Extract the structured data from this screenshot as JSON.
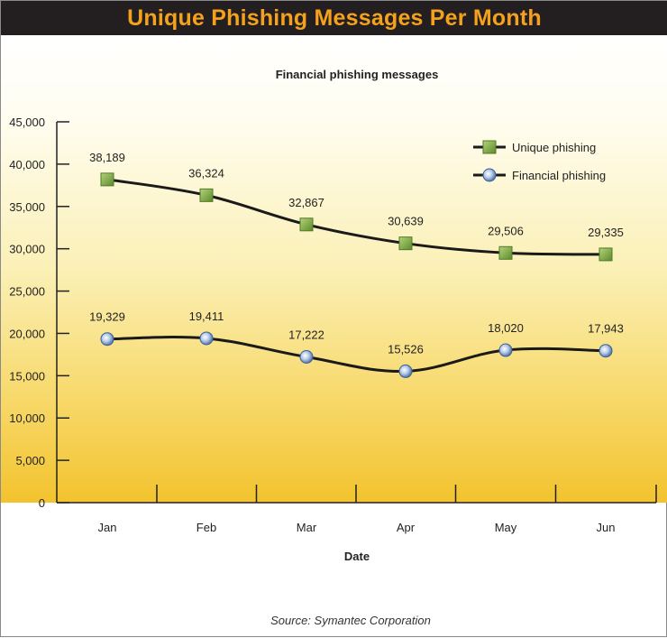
{
  "header": {
    "title": "Unique Phishing Messages Per Month"
  },
  "chart_data": {
    "type": "line",
    "title": "Financial phishing messages",
    "xlabel": "Date",
    "ylabel": "",
    "categories": [
      "Jan",
      "Feb",
      "Mar",
      "Apr",
      "May",
      "Jun"
    ],
    "ylim": [
      0,
      45000
    ],
    "yticks": [
      0,
      5000,
      10000,
      15000,
      20000,
      25000,
      30000,
      35000,
      40000,
      45000
    ],
    "ytick_labels": [
      "0",
      "5,000",
      "10,000",
      "15,000",
      "20,000",
      "25,000",
      "30,000",
      "35,000",
      "40,000",
      "45,000"
    ],
    "grid": false,
    "legend_position": "top-right",
    "series": [
      {
        "name": "Unique phishing",
        "marker": "square",
        "color": "#6f9a3a",
        "values": [
          38189,
          36324,
          32867,
          30639,
          29506,
          29335
        ],
        "labels": [
          "38,189",
          "36,324",
          "32,867",
          "30,639",
          "29,506",
          "29,335"
        ]
      },
      {
        "name": "Financial phishing",
        "marker": "circle",
        "color": "#6d8fc0",
        "values": [
          19329,
          19411,
          17222,
          15526,
          18020,
          17943
        ],
        "labels": [
          "19,329",
          "19,411",
          "17,222",
          "15,526",
          "18,020",
          "17,943"
        ]
      }
    ]
  },
  "footer": {
    "source": "Source: Symantec Corporation"
  }
}
